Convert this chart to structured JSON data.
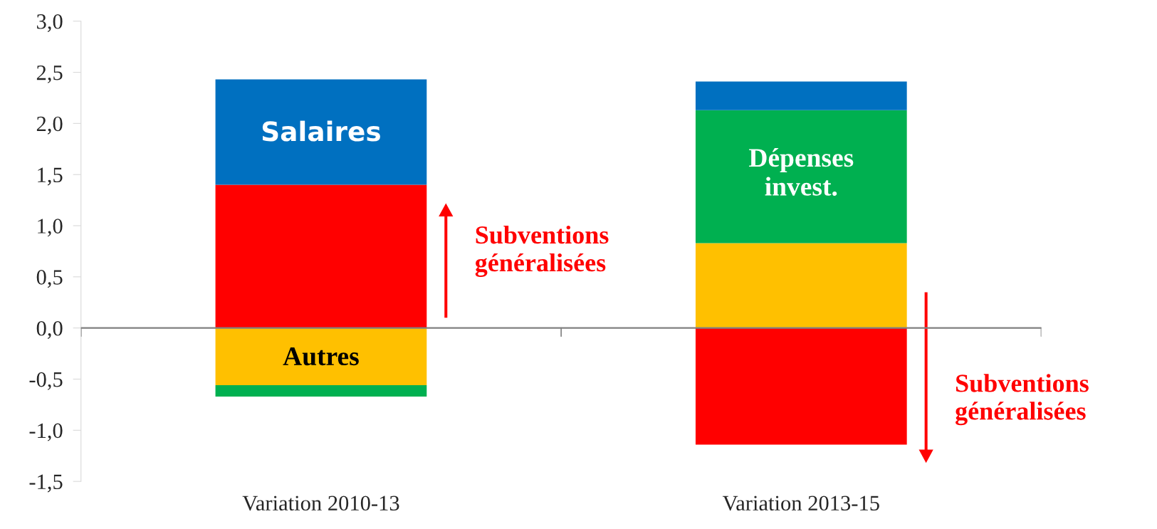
{
  "chart_data": {
    "type": "bar",
    "stacked": true,
    "categories": [
      "Variation 2010-13",
      "Variation 2013-15"
    ],
    "series": [
      {
        "color": "#ff0000",
        "values": [
          1.4,
          -1.14
        ]
      },
      {
        "color": "#ffc000",
        "values": [
          -0.56,
          0.83
        ]
      },
      {
        "color": "#00b050",
        "values": [
          -0.11,
          1.3
        ]
      },
      {
        "color": "#0070c0",
        "values": [
          1.03,
          0.28
        ]
      }
    ],
    "ylim": [
      -1.5,
      3.0
    ],
    "yticks": [
      {
        "value": -1.5,
        "label": "-1,5"
      },
      {
        "value": -1.0,
        "label": "-1,0"
      },
      {
        "value": -0.5,
        "label": "-0,5"
      },
      {
        "value": 0,
        "label": "0,0"
      },
      {
        "value": 0.5,
        "label": "0,5"
      },
      {
        "value": 1.0,
        "label": "1,0"
      },
      {
        "value": 1.5,
        "label": "1,5"
      },
      {
        "value": 2.0,
        "label": "2,0"
      },
      {
        "value": 2.5,
        "label": "2,5"
      },
      {
        "value": 3.0,
        "label": "3,0"
      }
    ],
    "legend": false,
    "annotations": [
      "Salaires",
      "Autres",
      "Dépenses\ninvest.",
      "Subventions\ngénéralisées",
      "Subventions\ngénéralisées"
    ]
  }
}
